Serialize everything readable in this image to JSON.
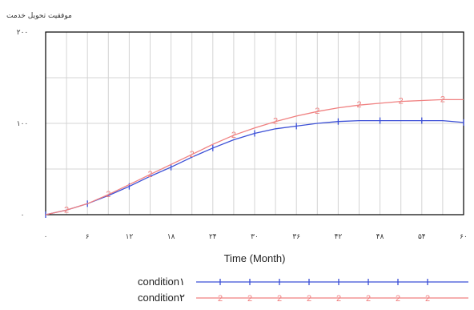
{
  "chart_data": {
    "type": "line",
    "title": "موفقیت تحویل خدمت",
    "xlabel": "Time (Month)",
    "ylabel": "",
    "xlim": [
      0,
      60
    ],
    "ylim": [
      0,
      200
    ],
    "x_ticks": [
      0,
      6,
      12,
      18,
      24,
      30,
      36,
      42,
      48,
      54,
      60
    ],
    "x_tick_labels": [
      "۰",
      "۶",
      "۱۲",
      "۱۸",
      "۲۴",
      "۳۰",
      "۳۶",
      "۴۲",
      "۴۸",
      "۵۴",
      "۶۰"
    ],
    "y_ticks": [
      0,
      100,
      200
    ],
    "y_tick_labels": [
      "۰",
      "۱۰۰",
      "۲۰۰"
    ],
    "grid": true,
    "legend": "bottom",
    "series": [
      {
        "name": "condition۱",
        "marker_label": "1",
        "color": "#3b4fd6",
        "x": [
          0,
          3,
          6,
          9,
          12,
          15,
          18,
          21,
          24,
          27,
          30,
          33,
          36,
          39,
          42,
          45,
          48,
          51,
          54,
          57,
          60
        ],
        "values": [
          0,
          5,
          12,
          21,
          31,
          42,
          52,
          63,
          73,
          82,
          89,
          94,
          97,
          100,
          102,
          103,
          103,
          103,
          103,
          103,
          101
        ]
      },
      {
        "name": "condition۲",
        "marker_label": "2",
        "color": "#f08080",
        "x": [
          0,
          3,
          6,
          9,
          12,
          15,
          18,
          21,
          24,
          27,
          30,
          33,
          36,
          39,
          42,
          45,
          48,
          51,
          54,
          57,
          60
        ],
        "values": [
          0,
          5,
          12,
          22,
          33,
          44,
          55,
          66,
          77,
          87,
          95,
          102,
          108,
          113,
          117,
          120,
          122,
          124,
          125,
          126,
          126
        ]
      }
    ]
  }
}
